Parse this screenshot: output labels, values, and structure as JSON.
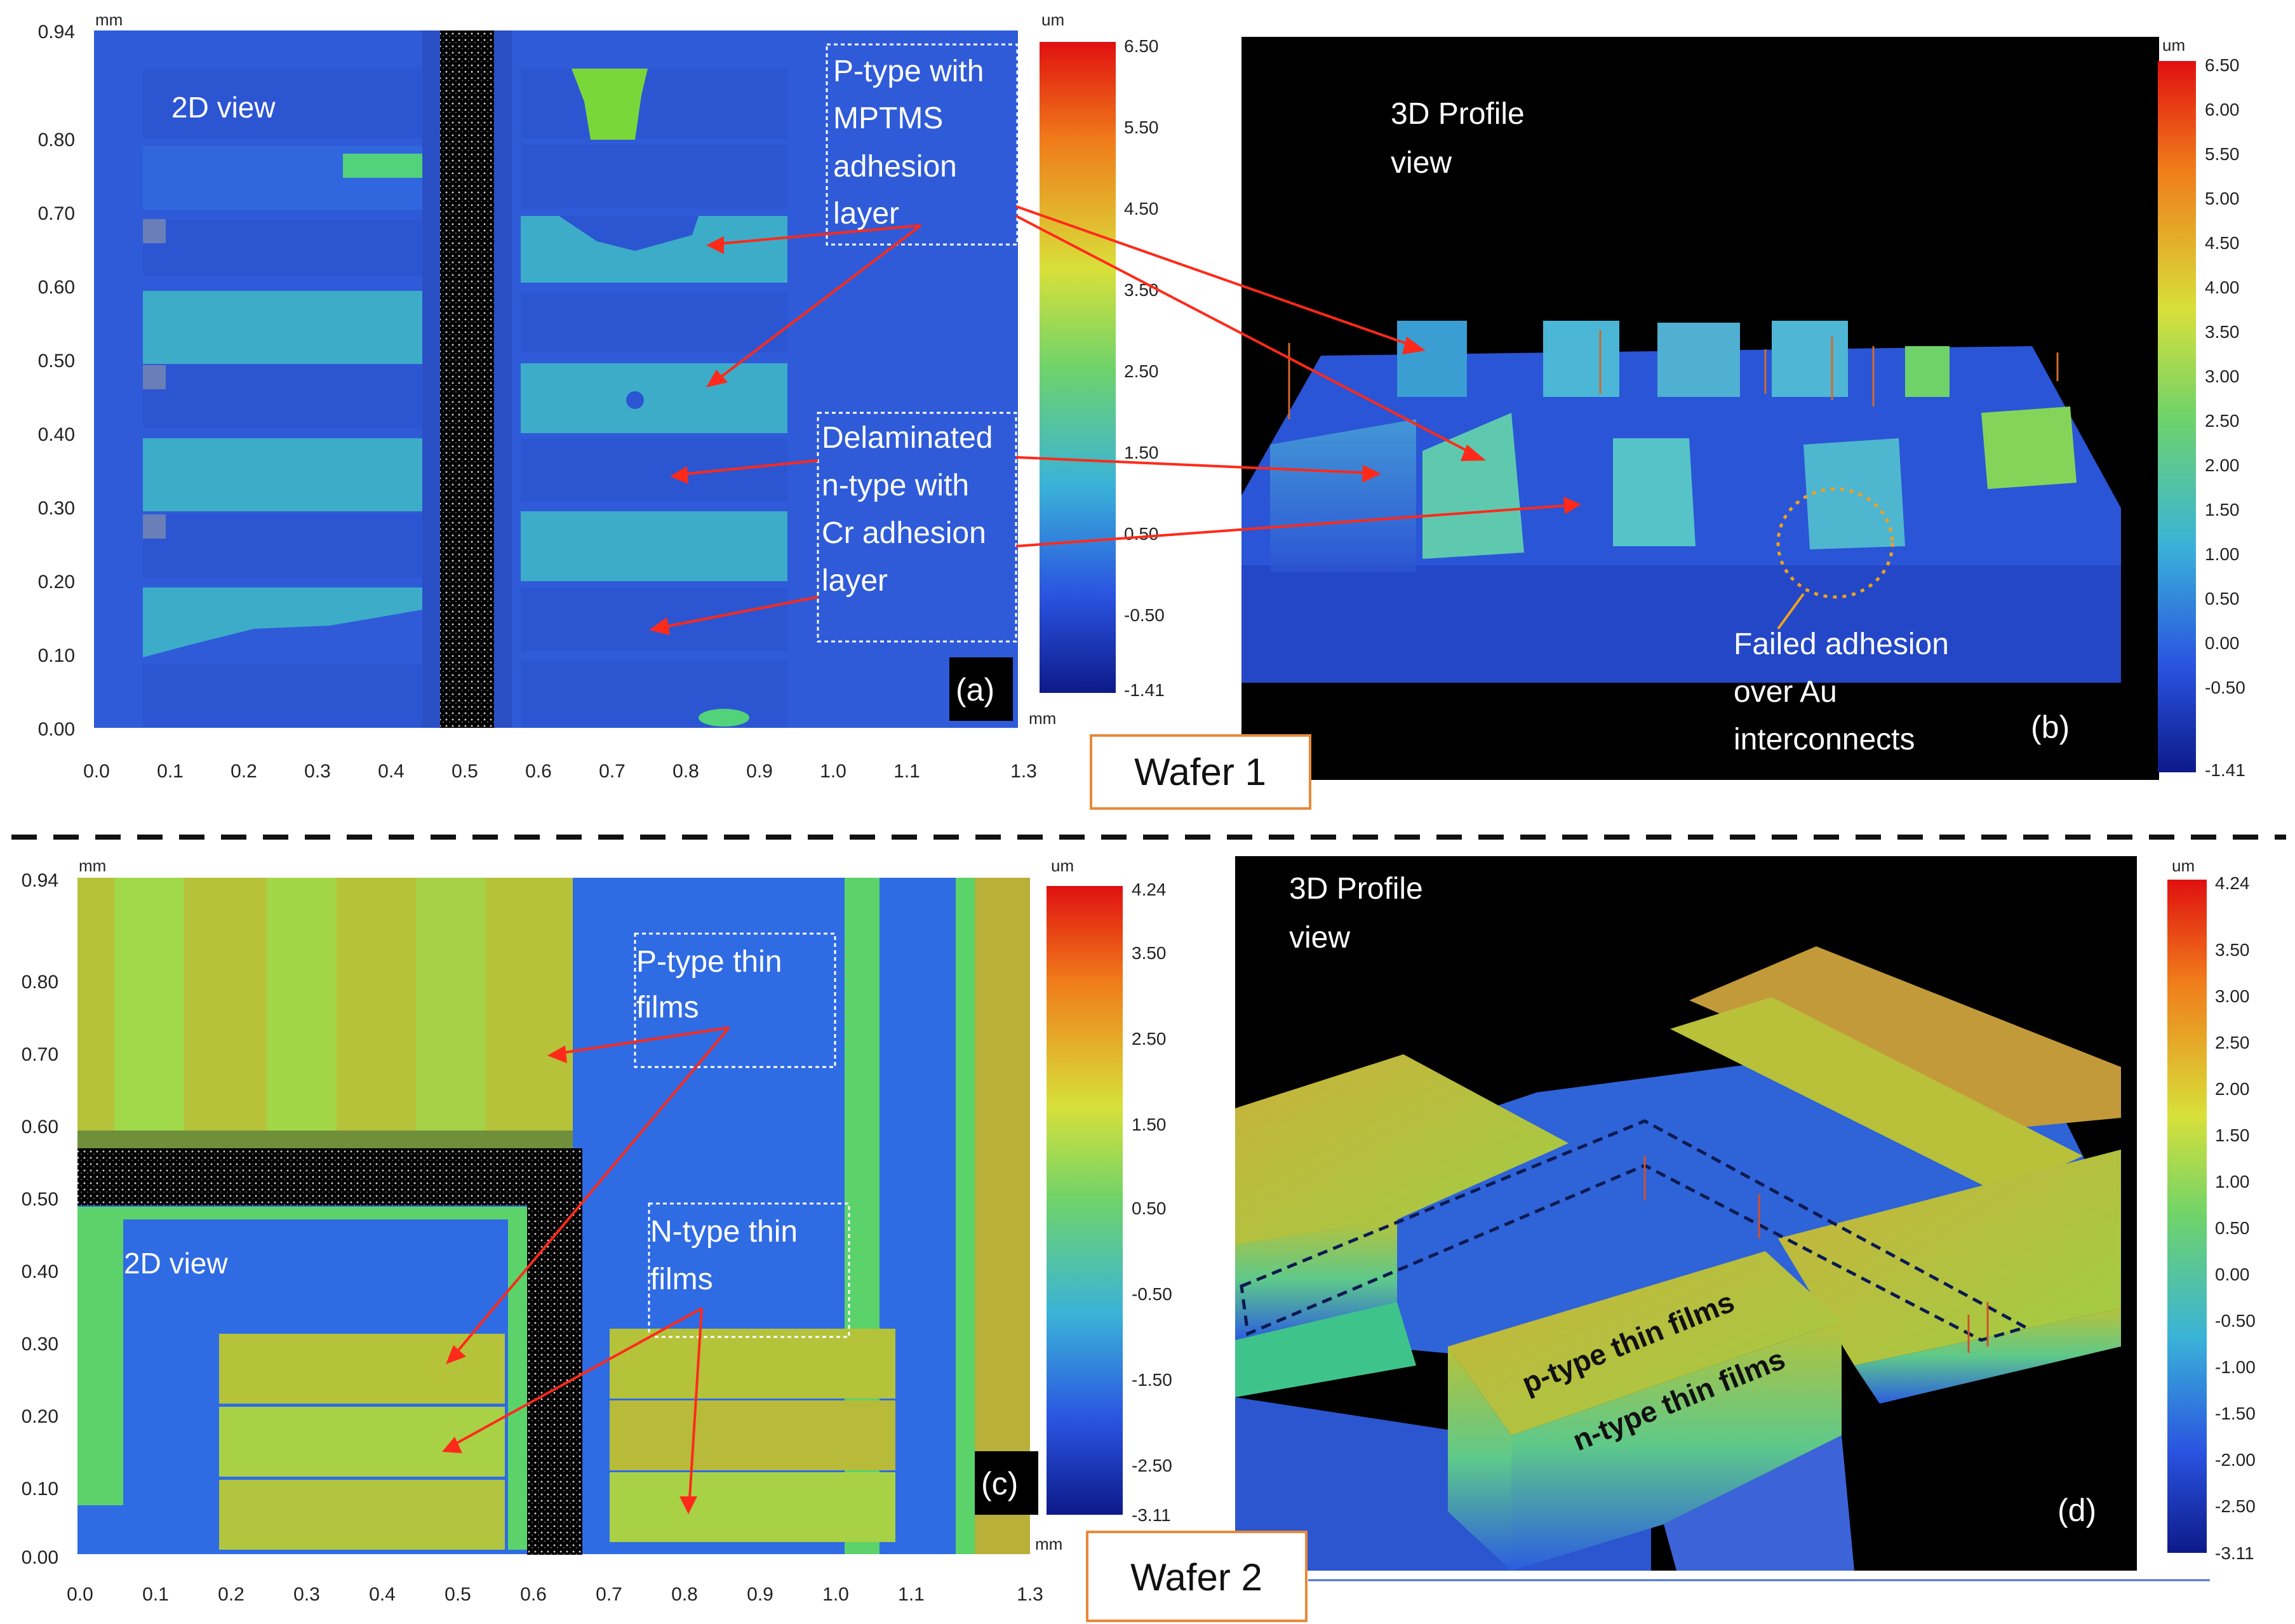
{
  "panels": {
    "a": {
      "tag": "(a)",
      "view_label": "2D view",
      "unit_mm": "mm",
      "y_ticks": [
        "0.94",
        "0.80",
        "0.70",
        "0.60",
        "0.50",
        "0.40",
        "0.30",
        "0.20",
        "0.10",
        "0.00"
      ],
      "x_ticks": [
        "0.0",
        "0.1",
        "0.2",
        "0.3",
        "0.4",
        "0.5",
        "0.6",
        "0.7",
        "0.8",
        "0.9",
        "1.0",
        "1.1",
        "1.3"
      ],
      "annotation_p": [
        "P-type with",
        "MPTMS",
        "adhesion",
        "layer"
      ],
      "annotation_n": [
        "Delaminated",
        "n-type with",
        "Cr adhesion",
        "layer"
      ],
      "colorbar": {
        "unit": "um",
        "ticks": [
          "6.50",
          "5.50",
          "4.50",
          "3.50",
          "2.50",
          "1.50",
          "0.50",
          "-0.50",
          "-1.41"
        ]
      }
    },
    "b": {
      "tag": "(b)",
      "view_label": [
        "3D Profile",
        "view"
      ],
      "annotation_fail": [
        "Failed adhesion",
        "over Au",
        "interconnects"
      ],
      "colorbar": {
        "unit": "um",
        "ticks": [
          "6.50",
          "6.00",
          "5.50",
          "5.00",
          "4.50",
          "4.00",
          "3.50",
          "3.00",
          "2.50",
          "2.00",
          "1.50",
          "1.00",
          "0.50",
          "0.00",
          "-0.50",
          "-1.41"
        ]
      }
    },
    "c": {
      "tag": "(c)",
      "view_label": "2D view",
      "unit_mm": "mm",
      "y_ticks": [
        "0.94",
        "0.80",
        "0.70",
        "0.60",
        "0.50",
        "0.40",
        "0.30",
        "0.20",
        "0.10",
        "0.00"
      ],
      "x_ticks": [
        "0.0",
        "0.1",
        "0.2",
        "0.3",
        "0.4",
        "0.5",
        "0.6",
        "0.7",
        "0.8",
        "0.9",
        "1.0",
        "1.1",
        "1.3"
      ],
      "annotation_p": [
        "P-type thin",
        "films"
      ],
      "annotation_n": [
        "N-type thin",
        "films"
      ],
      "colorbar": {
        "unit": "um",
        "ticks": [
          "4.24",
          "3.50",
          "2.50",
          "1.50",
          "0.50",
          "-0.50",
          "-1.50",
          "-2.50",
          "-3.11"
        ]
      }
    },
    "d": {
      "tag": "(d)",
      "view_label": [
        "3D Profile",
        "view"
      ],
      "label_p": "p-type thin films",
      "label_n": "n-type thin films",
      "colorbar": {
        "unit": "um",
        "ticks": [
          "4.24",
          "3.50",
          "3.00",
          "2.50",
          "2.00",
          "1.50",
          "1.00",
          "0.50",
          "0.00",
          "-0.50",
          "-1.00",
          "-1.50",
          "-2.00",
          "-2.50",
          "-3.11"
        ]
      }
    }
  },
  "wafer_labels": {
    "w1": "Wafer 1",
    "w2": "Wafer 2"
  },
  "colors": {
    "substrate_blue": "#2f5bd9",
    "deep_blue": "#1c2fb0",
    "film_cyan": "#3fb6c8",
    "film_green": "#8fcf3a",
    "film_olive": "#a8b03a",
    "accent_red": "#ff2a1a",
    "box_orange": "#e8893a"
  }
}
